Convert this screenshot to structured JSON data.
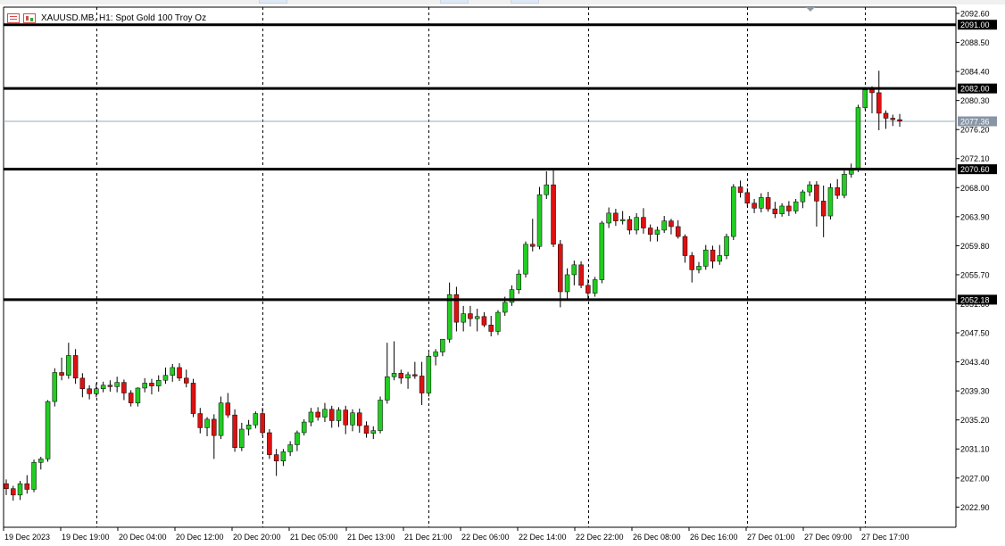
{
  "window": {
    "title": "XAUUSD.MB, H1:  Spot Gold 100 Troy Oz",
    "icons": [
      "list-icon",
      "chart-icon"
    ]
  },
  "colors": {
    "bull": "#22cc22",
    "bear": "#dd1111",
    "wick": "#000000",
    "grid": "#000000",
    "level_line": "#000000",
    "price_label_bg": "#000000",
    "current_price_bg": "#8795a5",
    "current_price_line": "#9aa8b8"
  },
  "chart_data": {
    "type": "candlestick",
    "symbol": "XAUUSD.MB",
    "timeframe": "H1",
    "description": "Spot Gold 100 Troy Oz",
    "y_ticks": [
      "2092.60",
      "2088.50",
      "2084.40",
      "2080.30",
      "2076.20",
      "2072.10",
      "2068.00",
      "2063.90",
      "2059.80",
      "2055.70",
      "2051.60",
      "2047.50",
      "2043.40",
      "2039.30",
      "2035.20",
      "2031.10",
      "2027.00",
      "2022.90"
    ],
    "ylim": [
      2020.0,
      2093.5
    ],
    "x_labels": [
      "19 Dec 2023",
      "19 Dec 19:00",
      "20 Dec 04:00",
      "20 Dec 12:00",
      "20 Dec 20:00",
      "21 Dec 05:00",
      "21 Dec 13:00",
      "21 Dec 21:00",
      "22 Dec 06:00",
      "22 Dec 14:00",
      "22 Dec 22:00",
      "26 Dec 08:00",
      "26 Dec 16:00",
      "27 Dec 01:00",
      "27 Dec 09:00",
      "27 Dec 17:00"
    ],
    "horizontal_levels": [
      {
        "price": 2091.0,
        "label": "2091.00"
      },
      {
        "price": 2082.0,
        "label": "2082.00"
      },
      {
        "price": 2070.6,
        "label": "2070.60"
      },
      {
        "price": 2052.18,
        "label": "2052.18"
      }
    ],
    "current_price": {
      "price": 2077.36,
      "label": "2077.36"
    },
    "candles": [
      {
        "o": 2026.2,
        "h": 2026.8,
        "l": 2024.6,
        "c": 2025.5
      },
      {
        "o": 2025.5,
        "h": 2025.9,
        "l": 2023.8,
        "c": 2024.6
      },
      {
        "o": 2024.6,
        "h": 2026.6,
        "l": 2023.9,
        "c": 2026.2
      },
      {
        "o": 2026.2,
        "h": 2027.4,
        "l": 2024.8,
        "c": 2025.4
      },
      {
        "o": 2025.4,
        "h": 2029.6,
        "l": 2025.0,
        "c": 2029.2
      },
      {
        "o": 2029.2,
        "h": 2030.0,
        "l": 2028.2,
        "c": 2029.7
      },
      {
        "o": 2029.7,
        "h": 2038.0,
        "l": 2029.3,
        "c": 2037.8
      },
      {
        "o": 2037.8,
        "h": 2042.5,
        "l": 2037.1,
        "c": 2041.9
      },
      {
        "o": 2041.9,
        "h": 2044.0,
        "l": 2040.8,
        "c": 2041.5
      },
      {
        "o": 2041.5,
        "h": 2046.1,
        "l": 2041.0,
        "c": 2044.3
      },
      {
        "o": 2044.3,
        "h": 2045.2,
        "l": 2040.3,
        "c": 2041.1
      },
      {
        "o": 2041.1,
        "h": 2041.8,
        "l": 2038.4,
        "c": 2039.6
      },
      {
        "o": 2039.6,
        "h": 2040.1,
        "l": 2038.1,
        "c": 2038.9
      },
      {
        "o": 2038.9,
        "h": 2040.4,
        "l": 2038.4,
        "c": 2039.6
      },
      {
        "o": 2039.6,
        "h": 2040.6,
        "l": 2039.1,
        "c": 2040.1
      },
      {
        "o": 2040.1,
        "h": 2040.8,
        "l": 2039.2,
        "c": 2039.9
      },
      {
        "o": 2039.9,
        "h": 2041.3,
        "l": 2039.1,
        "c": 2040.5
      },
      {
        "o": 2040.5,
        "h": 2040.9,
        "l": 2038.0,
        "c": 2039.0
      },
      {
        "o": 2039.0,
        "h": 2039.4,
        "l": 2037.1,
        "c": 2037.6
      },
      {
        "o": 2037.6,
        "h": 2039.8,
        "l": 2037.1,
        "c": 2039.7
      },
      {
        "o": 2039.7,
        "h": 2041.1,
        "l": 2039.1,
        "c": 2040.4
      },
      {
        "o": 2040.4,
        "h": 2041.0,
        "l": 2038.8,
        "c": 2040.0
      },
      {
        "o": 2040.0,
        "h": 2041.5,
        "l": 2039.2,
        "c": 2040.8
      },
      {
        "o": 2040.8,
        "h": 2042.6,
        "l": 2040.3,
        "c": 2041.5
      },
      {
        "o": 2041.5,
        "h": 2043.1,
        "l": 2040.6,
        "c": 2042.6
      },
      {
        "o": 2042.6,
        "h": 2043.2,
        "l": 2040.7,
        "c": 2041.1
      },
      {
        "o": 2041.1,
        "h": 2042.3,
        "l": 2039.8,
        "c": 2040.4
      },
      {
        "o": 2040.4,
        "h": 2041.0,
        "l": 2035.6,
        "c": 2036.1
      },
      {
        "o": 2036.1,
        "h": 2036.9,
        "l": 2033.3,
        "c": 2034.1
      },
      {
        "o": 2034.1,
        "h": 2035.6,
        "l": 2032.9,
        "c": 2035.3
      },
      {
        "o": 2035.3,
        "h": 2036.0,
        "l": 2029.7,
        "c": 2033.0
      },
      {
        "o": 2033.0,
        "h": 2038.5,
        "l": 2032.5,
        "c": 2037.6
      },
      {
        "o": 2037.6,
        "h": 2039.0,
        "l": 2035.5,
        "c": 2035.9
      },
      {
        "o": 2035.9,
        "h": 2036.7,
        "l": 2030.7,
        "c": 2031.3
      },
      {
        "o": 2031.3,
        "h": 2034.8,
        "l": 2030.8,
        "c": 2033.9
      },
      {
        "o": 2033.9,
        "h": 2035.2,
        "l": 2033.0,
        "c": 2034.5
      },
      {
        "o": 2034.5,
        "h": 2036.4,
        "l": 2034.0,
        "c": 2036.1
      },
      {
        "o": 2036.1,
        "h": 2036.9,
        "l": 2032.9,
        "c": 2033.4
      },
      {
        "o": 2033.4,
        "h": 2033.9,
        "l": 2029.7,
        "c": 2030.3
      },
      {
        "o": 2030.3,
        "h": 2031.1,
        "l": 2027.3,
        "c": 2029.4
      },
      {
        "o": 2029.4,
        "h": 2031.1,
        "l": 2028.7,
        "c": 2030.7
      },
      {
        "o": 2030.7,
        "h": 2032.2,
        "l": 2030.1,
        "c": 2031.7
      },
      {
        "o": 2031.7,
        "h": 2033.7,
        "l": 2030.8,
        "c": 2033.4
      },
      {
        "o": 2033.4,
        "h": 2035.3,
        "l": 2033.0,
        "c": 2034.9
      },
      {
        "o": 2034.9,
        "h": 2036.9,
        "l": 2034.3,
        "c": 2036.3
      },
      {
        "o": 2036.3,
        "h": 2037.0,
        "l": 2035.1,
        "c": 2035.6
      },
      {
        "o": 2035.6,
        "h": 2037.6,
        "l": 2034.9,
        "c": 2036.7
      },
      {
        "o": 2036.7,
        "h": 2037.2,
        "l": 2034.1,
        "c": 2035.1
      },
      {
        "o": 2035.1,
        "h": 2037.0,
        "l": 2034.2,
        "c": 2036.6
      },
      {
        "o": 2036.6,
        "h": 2037.2,
        "l": 2033.2,
        "c": 2034.5
      },
      {
        "o": 2034.5,
        "h": 2036.7,
        "l": 2033.6,
        "c": 2036.2
      },
      {
        "o": 2036.2,
        "h": 2036.8,
        "l": 2033.4,
        "c": 2034.4
      },
      {
        "o": 2034.4,
        "h": 2035.0,
        "l": 2032.7,
        "c": 2033.3
      },
      {
        "o": 2033.3,
        "h": 2034.3,
        "l": 2032.5,
        "c": 2033.7
      },
      {
        "o": 2033.7,
        "h": 2038.5,
        "l": 2033.3,
        "c": 2038.0
      },
      {
        "o": 2038.0,
        "h": 2046.1,
        "l": 2037.5,
        "c": 2041.3
      },
      {
        "o": 2041.3,
        "h": 2046.3,
        "l": 2040.8,
        "c": 2041.8
      },
      {
        "o": 2041.8,
        "h": 2042.3,
        "l": 2040.3,
        "c": 2041.1
      },
      {
        "o": 2041.1,
        "h": 2042.0,
        "l": 2039.6,
        "c": 2041.6
      },
      {
        "o": 2041.6,
        "h": 2043.4,
        "l": 2041.0,
        "c": 2041.4
      },
      {
        "o": 2041.4,
        "h": 2043.4,
        "l": 2037.3,
        "c": 2039.0
      },
      {
        "o": 2039.0,
        "h": 2044.7,
        "l": 2038.5,
        "c": 2044.2
      },
      {
        "o": 2044.2,
        "h": 2045.2,
        "l": 2042.9,
        "c": 2044.8
      },
      {
        "o": 2044.8,
        "h": 2046.6,
        "l": 2044.2,
        "c": 2046.6
      },
      {
        "o": 2046.6,
        "h": 2054.6,
        "l": 2046.1,
        "c": 2052.9
      },
      {
        "o": 2052.9,
        "h": 2054.0,
        "l": 2047.7,
        "c": 2049.0
      },
      {
        "o": 2049.0,
        "h": 2051.3,
        "l": 2047.7,
        "c": 2050.2
      },
      {
        "o": 2050.2,
        "h": 2051.3,
        "l": 2048.4,
        "c": 2049.5
      },
      {
        "o": 2049.5,
        "h": 2050.9,
        "l": 2047.7,
        "c": 2049.8
      },
      {
        "o": 2049.8,
        "h": 2050.4,
        "l": 2048.3,
        "c": 2048.6
      },
      {
        "o": 2048.6,
        "h": 2049.9,
        "l": 2047.0,
        "c": 2047.7
      },
      {
        "o": 2047.7,
        "h": 2050.7,
        "l": 2047.2,
        "c": 2050.4
      },
      {
        "o": 2050.4,
        "h": 2052.6,
        "l": 2049.9,
        "c": 2051.8
      },
      {
        "o": 2051.8,
        "h": 2054.2,
        "l": 2051.3,
        "c": 2053.6
      },
      {
        "o": 2053.6,
        "h": 2056.4,
        "l": 2053.0,
        "c": 2055.8
      },
      {
        "o": 2055.8,
        "h": 2060.4,
        "l": 2055.3,
        "c": 2060.0
      },
      {
        "o": 2060.0,
        "h": 2063.6,
        "l": 2059.0,
        "c": 2059.7
      },
      {
        "o": 2059.7,
        "h": 2068.1,
        "l": 2059.3,
        "c": 2067.0
      },
      {
        "o": 2067.0,
        "h": 2070.3,
        "l": 2066.4,
        "c": 2068.4
      },
      {
        "o": 2068.4,
        "h": 2070.5,
        "l": 2059.6,
        "c": 2060.0
      },
      {
        "o": 2060.0,
        "h": 2060.6,
        "l": 2051.1,
        "c": 2053.3
      },
      {
        "o": 2053.3,
        "h": 2056.6,
        "l": 2052.3,
        "c": 2055.7
      },
      {
        "o": 2055.7,
        "h": 2057.7,
        "l": 2054.2,
        "c": 2057.1
      },
      {
        "o": 2057.1,
        "h": 2057.6,
        "l": 2053.8,
        "c": 2054.2
      },
      {
        "o": 2054.2,
        "h": 2055.1,
        "l": 2052.1,
        "c": 2053.1
      },
      {
        "o": 2053.1,
        "h": 2055.4,
        "l": 2052.6,
        "c": 2055.0
      },
      {
        "o": 2055.0,
        "h": 2063.3,
        "l": 2054.5,
        "c": 2063.0
      },
      {
        "o": 2063.0,
        "h": 2065.2,
        "l": 2062.3,
        "c": 2064.4
      },
      {
        "o": 2064.4,
        "h": 2065.0,
        "l": 2062.6,
        "c": 2063.3
      },
      {
        "o": 2063.3,
        "h": 2064.7,
        "l": 2062.8,
        "c": 2063.5
      },
      {
        "o": 2063.5,
        "h": 2064.0,
        "l": 2061.4,
        "c": 2062.0
      },
      {
        "o": 2062.0,
        "h": 2064.4,
        "l": 2061.4,
        "c": 2063.8
      },
      {
        "o": 2063.8,
        "h": 2065.1,
        "l": 2061.5,
        "c": 2062.3
      },
      {
        "o": 2062.3,
        "h": 2062.8,
        "l": 2060.4,
        "c": 2061.4
      },
      {
        "o": 2061.4,
        "h": 2062.5,
        "l": 2060.4,
        "c": 2062.0
      },
      {
        "o": 2062.0,
        "h": 2064.0,
        "l": 2061.6,
        "c": 2063.3
      },
      {
        "o": 2063.3,
        "h": 2063.6,
        "l": 2061.4,
        "c": 2062.5
      },
      {
        "o": 2062.5,
        "h": 2063.4,
        "l": 2060.8,
        "c": 2061.1
      },
      {
        "o": 2061.1,
        "h": 2061.4,
        "l": 2057.4,
        "c": 2058.4
      },
      {
        "o": 2058.4,
        "h": 2058.9,
        "l": 2054.6,
        "c": 2056.4
      },
      {
        "o": 2056.4,
        "h": 2057.5,
        "l": 2055.9,
        "c": 2056.9
      },
      {
        "o": 2056.9,
        "h": 2059.9,
        "l": 2056.4,
        "c": 2059.2
      },
      {
        "o": 2059.2,
        "h": 2059.8,
        "l": 2056.6,
        "c": 2057.6
      },
      {
        "o": 2057.6,
        "h": 2059.9,
        "l": 2057.1,
        "c": 2058.4
      },
      {
        "o": 2058.4,
        "h": 2061.5,
        "l": 2057.9,
        "c": 2061.1
      },
      {
        "o": 2061.1,
        "h": 2068.5,
        "l": 2060.6,
        "c": 2068.1
      },
      {
        "o": 2068.1,
        "h": 2069.0,
        "l": 2066.6,
        "c": 2067.3
      },
      {
        "o": 2067.3,
        "h": 2067.9,
        "l": 2065.3,
        "c": 2065.8
      },
      {
        "o": 2065.8,
        "h": 2066.4,
        "l": 2064.4,
        "c": 2065.1
      },
      {
        "o": 2065.1,
        "h": 2067.2,
        "l": 2064.5,
        "c": 2066.6
      },
      {
        "o": 2066.6,
        "h": 2067.4,
        "l": 2064.6,
        "c": 2065.0
      },
      {
        "o": 2065.0,
        "h": 2066.0,
        "l": 2063.7,
        "c": 2064.3
      },
      {
        "o": 2064.3,
        "h": 2065.8,
        "l": 2063.9,
        "c": 2065.4
      },
      {
        "o": 2065.4,
        "h": 2066.1,
        "l": 2064.0,
        "c": 2064.7
      },
      {
        "o": 2064.7,
        "h": 2066.4,
        "l": 2064.3,
        "c": 2066.0
      },
      {
        "o": 2066.0,
        "h": 2067.7,
        "l": 2065.1,
        "c": 2067.4
      },
      {
        "o": 2067.4,
        "h": 2068.9,
        "l": 2066.8,
        "c": 2068.4
      },
      {
        "o": 2068.4,
        "h": 2068.9,
        "l": 2062.5,
        "c": 2066.1
      },
      {
        "o": 2066.1,
        "h": 2068.3,
        "l": 2061.0,
        "c": 2064.0
      },
      {
        "o": 2064.0,
        "h": 2068.6,
        "l": 2063.5,
        "c": 2068.0
      },
      {
        "o": 2068.0,
        "h": 2069.2,
        "l": 2066.4,
        "c": 2066.9
      },
      {
        "o": 2066.9,
        "h": 2070.4,
        "l": 2066.5,
        "c": 2069.9
      },
      {
        "o": 2069.9,
        "h": 2071.4,
        "l": 2069.4,
        "c": 2070.7
      },
      {
        "o": 2070.7,
        "h": 2079.7,
        "l": 2070.2,
        "c": 2079.3
      },
      {
        "o": 2079.3,
        "h": 2082.2,
        "l": 2079.0,
        "c": 2081.8
      },
      {
        "o": 2081.8,
        "h": 2082.3,
        "l": 2078.5,
        "c": 2081.4
      },
      {
        "o": 2081.4,
        "h": 2084.5,
        "l": 2076.1,
        "c": 2078.5
      },
      {
        "o": 2078.5,
        "h": 2078.9,
        "l": 2076.3,
        "c": 2077.8
      },
      {
        "o": 2077.8,
        "h": 2078.3,
        "l": 2076.7,
        "c": 2077.6
      },
      {
        "o": 2077.6,
        "h": 2078.4,
        "l": 2076.6,
        "c": 2077.4
      }
    ]
  }
}
